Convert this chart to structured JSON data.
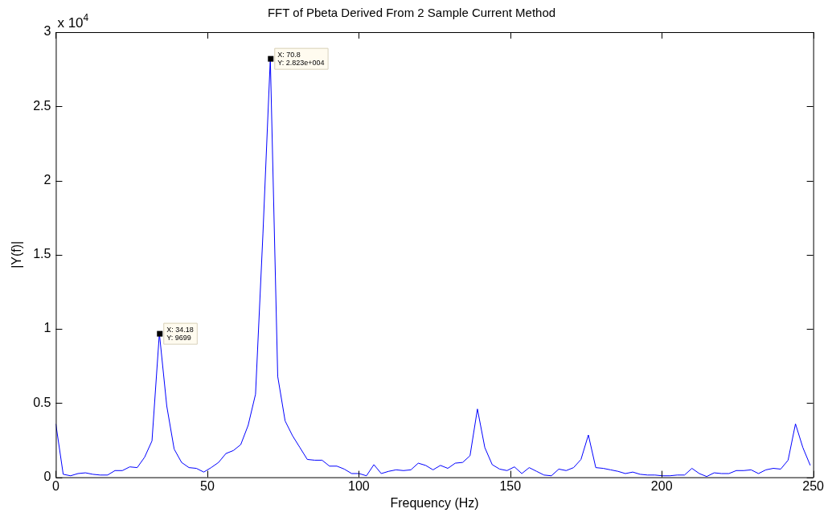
{
  "chart_data": {
    "type": "line",
    "title": "FFT of Pbeta Derived From 2 Sample Current Method",
    "xlabel": "Frequency (Hz)",
    "ylabel": "|Y(f)|",
    "x": [
      0,
      2.44,
      4.88,
      7.32,
      9.77,
      12.21,
      14.65,
      17.09,
      19.53,
      21.97,
      24.41,
      26.86,
      29.3,
      31.74,
      34.18,
      36.62,
      39.06,
      41.5,
      43.95,
      46.39,
      48.83,
      51.27,
      53.71,
      56.15,
      58.59,
      61.04,
      63.48,
      65.92,
      68.36,
      70.8,
      73.24,
      75.68,
      78.13,
      80.57,
      83.01,
      85.45,
      87.89,
      90.33,
      92.77,
      95.21,
      97.66,
      100.1,
      102.54,
      104.98,
      107.42,
      109.86,
      112.3,
      114.75,
      117.19,
      119.63,
      122.07,
      124.51,
      126.95,
      129.39,
      131.84,
      134.28,
      136.72,
      139.16,
      141.6,
      144.04,
      146.48,
      148.93,
      151.37,
      153.81,
      156.25,
      158.69,
      161.13,
      163.57,
      166.02,
      168.46,
      170.9,
      173.34,
      175.78,
      178.22,
      180.66,
      183.11,
      185.55,
      187.99,
      190.43,
      192.87,
      195.31,
      197.75,
      200.2,
      202.64,
      205.08,
      207.52,
      209.96,
      212.4,
      214.84,
      217.29,
      219.73,
      222.17,
      224.61,
      227.05,
      229.49,
      231.93,
      234.38,
      236.82,
      239.26,
      241.7,
      244.14,
      246.58,
      249.02
    ],
    "series": [
      {
        "color": "#0000ff",
        "values": [
          0.36,
          0.02,
          0.01,
          0.025,
          0.03,
          0.02,
          0.015,
          0.015,
          0.045,
          0.045,
          0.07,
          0.065,
          0.135,
          0.245,
          0.97,
          0.48,
          0.19,
          0.1,
          0.065,
          0.06,
          0.035,
          0.065,
          0.1,
          0.16,
          0.18,
          0.22,
          0.35,
          0.56,
          1.64,
          2.823,
          0.68,
          0.38,
          0.28,
          0.2,
          0.12,
          0.115,
          0.115,
          0.075,
          0.075,
          0.055,
          0.025,
          0.025,
          0.01,
          0.085,
          0.025,
          0.04,
          0.05,
          0.045,
          0.05,
          0.095,
          0.08,
          0.05,
          0.08,
          0.06,
          0.095,
          0.1,
          0.145,
          0.46,
          0.2,
          0.085,
          0.055,
          0.045,
          0.07,
          0.025,
          0.065,
          0.04,
          0.015,
          0.01,
          0.055,
          0.045,
          0.065,
          0.12,
          0.285,
          0.065,
          0.06,
          0.05,
          0.04,
          0.025,
          0.035,
          0.02,
          0.015,
          0.015,
          0.01,
          0.01,
          0.015,
          0.015,
          0.06,
          0.025,
          0.005,
          0.03,
          0.025,
          0.025,
          0.045,
          0.045,
          0.05,
          0.025,
          0.05,
          0.06,
          0.055,
          0.115,
          0.36,
          0.2,
          0.08
        ]
      }
    ],
    "xlim": [
      0,
      250
    ],
    "xticks": [
      0,
      50,
      100,
      150,
      200,
      250
    ],
    "ylim": [
      0,
      3
    ],
    "yticks": [
      0,
      0.5,
      1,
      1.5,
      2,
      2.5,
      3
    ],
    "annotations": [
      "x 10$^{4}$",
      {
        "text": "X: 34.18\nY: 9699",
        "x": 34.18,
        "y": 0.9699
      },
      {
        "text": "X: 70.8\nY: 2.823e+004",
        "x": 70.8,
        "y": 2.823
      }
    ],
    "grid": false,
    "legend": false,
    "marker": "none",
    "line_style": "solid"
  }
}
